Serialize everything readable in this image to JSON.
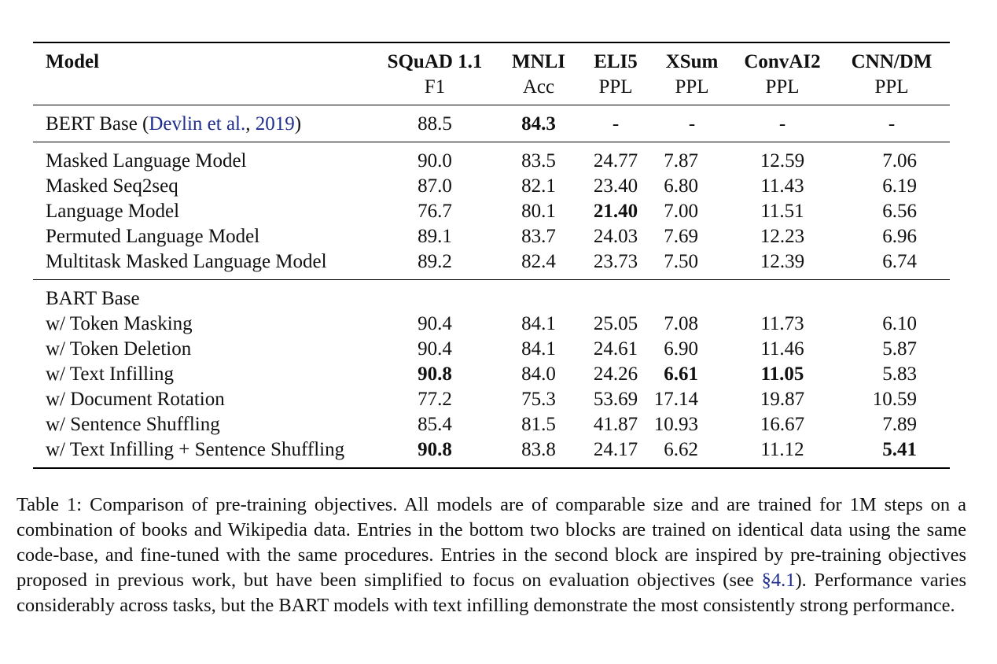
{
  "table": {
    "header": {
      "model": "Model",
      "columns": [
        {
          "name": "SQuAD 1.1",
          "metric": "F1"
        },
        {
          "name": "MNLI",
          "metric": "Acc"
        },
        {
          "name": "ELI5",
          "metric": "PPL"
        },
        {
          "name": "XSum",
          "metric": "PPL"
        },
        {
          "name": "ConvAI2",
          "metric": "PPL"
        },
        {
          "name": "CNN/DM",
          "metric": "PPL"
        }
      ]
    },
    "bert": {
      "label_prefix": "BERT Base (",
      "citation_author": "Devlin et al.",
      "citation_sep": ", ",
      "citation_year": "2019",
      "label_suffix": ")",
      "values": [
        "88.5",
        "84.3",
        "-",
        "-",
        "-",
        "-"
      ]
    },
    "block2": [
      {
        "model": "Masked Language Model",
        "values": [
          "90.0",
          "83.5",
          "24.77",
          "7.87",
          "12.59",
          "7.06"
        ]
      },
      {
        "model": "Masked Seq2seq",
        "values": [
          "87.0",
          "82.1",
          "23.40",
          "6.80",
          "11.43",
          "6.19"
        ]
      },
      {
        "model": "Language Model",
        "values": [
          "76.7",
          "80.1",
          "21.40",
          "7.00",
          "11.51",
          "6.56"
        ]
      },
      {
        "model": "Permuted Language Model",
        "values": [
          "89.1",
          "83.7",
          "24.03",
          "7.69",
          "12.23",
          "6.96"
        ]
      },
      {
        "model": "Multitask Masked Language Model",
        "values": [
          "89.2",
          "82.4",
          "23.73",
          "7.50",
          "12.39",
          "6.74"
        ]
      }
    ],
    "block3_title": "BART Base",
    "block3": [
      {
        "model": "w/ Token Masking",
        "values": [
          "90.4",
          "84.1",
          "25.05",
          "7.08",
          "11.73",
          "6.10"
        ]
      },
      {
        "model": "w/ Token Deletion",
        "values": [
          "90.4",
          "84.1",
          "24.61",
          "6.90",
          "11.46",
          "5.87"
        ]
      },
      {
        "model": "w/ Text Infilling",
        "values": [
          "90.8",
          "84.0",
          "24.26",
          "6.61",
          "11.05",
          "5.83"
        ]
      },
      {
        "model": "w/ Document Rotation",
        "values": [
          "77.2",
          "75.3",
          "53.69",
          "17.14",
          "19.87",
          "10.59"
        ]
      },
      {
        "model": "w/ Sentence Shuffling",
        "values": [
          "85.4",
          "81.5",
          "41.87",
          "10.93",
          "16.67",
          "7.89"
        ]
      },
      {
        "model": "w/ Text Infilling + Sentence Shuffling",
        "values": [
          "90.8",
          "83.8",
          "24.17",
          "6.62",
          "11.12",
          "5.41"
        ]
      }
    ]
  },
  "caption": {
    "text1": "Table 1:  Comparison of pre-training objectives. All models are of comparable size and are trained for 1M steps on a combination of books and Wikipedia data. Entries in the bottom two blocks are trained on identical data using the same code-base, and fine-tuned with the same procedures. Entries in the second block are inspired by pre-training objectives proposed in previous work, but have been simplified to focus on evaluation objectives (see ",
    "link": "§4.1",
    "text2": "). Performance varies considerably across tasks, but the BART models with text infilling demonstrate the most consistently strong performance."
  },
  "colors": {
    "text": "#111111",
    "link": "#1f2d8f"
  }
}
